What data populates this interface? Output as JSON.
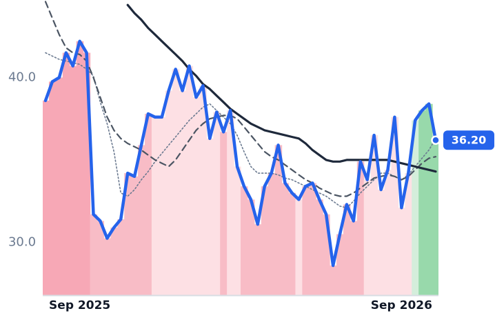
{
  "chart_data": {
    "type": "line",
    "categories": [
      null,
      null,
      null,
      null,
      null,
      "Sep 2025",
      null,
      null,
      null,
      null,
      null,
      null,
      null,
      null,
      null,
      null,
      null,
      null,
      null,
      null,
      null,
      null,
      null,
      null,
      null,
      null,
      null,
      null,
      null,
      null,
      null,
      null,
      null,
      null,
      null,
      null,
      null,
      null,
      null,
      null,
      null,
      null,
      null,
      null,
      null,
      null,
      null,
      null,
      null,
      null,
      null,
      null,
      "Sep 2026",
      null,
      null,
      null,
      null,
      null
    ],
    "ylim": [
      26.8,
      44.7
    ],
    "yticks": [
      {
        "value": 30,
        "label": "30.0"
      },
      {
        "value": 40,
        "label": "40.0"
      }
    ],
    "bar_colors": [
      "#f7a8b6",
      "#f7a8b6",
      "#f7a8b6",
      "#f7a8b6",
      "#f7a8b6",
      "#f7a8b6",
      "#f7a8b6",
      "#f8bcc6",
      "#f8bcc6",
      "#f8bcc6",
      "#f8bcc6",
      "#f8bcc6",
      "#f8bcc6",
      "#f8bcc6",
      "#f8bcc6",
      "#f8bcc6",
      "#fde0e4",
      "#fde0e4",
      "#fde0e4",
      "#fde0e4",
      "#fde0e4",
      "#fde0e4",
      "#fde0e4",
      "#fde0e4",
      "#fde0e4",
      "#fde0e4",
      "#f8bcc6",
      "#fde0e4",
      "#fde0e4",
      "#f8bcc6",
      "#f8bcc6",
      "#f8bcc6",
      "#f8bcc6",
      "#f8bcc6",
      "#f8bcc6",
      "#f8bcc6",
      "#f8bcc6",
      "#fde0e4",
      "#f8bcc6",
      "#f8bcc6",
      "#f8bcc6",
      "#f8bcc6",
      "#f8bcc6",
      "#f8bcc6",
      "#f8bcc6",
      "#f8bcc6",
      "#f8bcc6",
      "#fde0e4",
      "#fde0e4",
      "#fde0e4",
      "#fde0e4",
      "#fde0e4",
      "#fde0e4",
      "#fde0e4",
      "#d4eedb",
      "#98d9ab",
      "#98d9ab",
      "#98d9ab"
    ],
    "series": [
      {
        "color": "#6b7a90",
        "dash": "dotted",
        "width": 1.6,
        "values": [
          41.5,
          41.3,
          41.1,
          41.0,
          40.9,
          40.8,
          40.5,
          40.1,
          38.5,
          37.2,
          35.5,
          33.0,
          32.8,
          33.2,
          33.8,
          34.3,
          34.9,
          35.4,
          35.9,
          36.4,
          36.9,
          37.4,
          37.8,
          38.2,
          38.4,
          38.0,
          37.6,
          37.2,
          36.5,
          35.5,
          34.6,
          34.2,
          34.2,
          34.2,
          34.1,
          33.9,
          33.8,
          33.6,
          33.4,
          33.2,
          33.0,
          32.8,
          32.5,
          32.2,
          32.1,
          32.5,
          33.0,
          33.4,
          33.8,
          34.2,
          34.2,
          34.0,
          33.8,
          34.1,
          34.6,
          35.1,
          35.6,
          36.3
        ]
      },
      {
        "color": "#4b5563",
        "dash": "dashed",
        "width": 2.2,
        "values": [
          44.6,
          43.6,
          42.6,
          41.8,
          41.5,
          41.4,
          41.0,
          40.0,
          38.8,
          37.6,
          36.8,
          36.3,
          36.0,
          35.8,
          35.6,
          35.3,
          35.0,
          34.8,
          34.6,
          35.0,
          35.6,
          36.2,
          36.8,
          37.2,
          37.5,
          37.6,
          37.7,
          37.7,
          37.5,
          37.0,
          36.5,
          36.0,
          35.5,
          35.2,
          35.0,
          34.7,
          34.4,
          34.1,
          33.8,
          33.6,
          33.3,
          33.1,
          32.9,
          32.8,
          32.8,
          33.0,
          33.3,
          33.6,
          33.9,
          34.0,
          34.1,
          34.0,
          33.8,
          34.0,
          34.4,
          34.8,
          35.1,
          35.2
        ]
      },
      {
        "color": "#1e293b",
        "dash": "solid",
        "width": 3.2,
        "values": [
          null,
          null,
          null,
          null,
          null,
          null,
          null,
          null,
          null,
          null,
          null,
          null,
          44.4,
          43.9,
          43.5,
          43.0,
          42.6,
          42.2,
          41.8,
          41.4,
          41.0,
          40.5,
          40.1,
          39.6,
          39.3,
          38.9,
          38.5,
          38.1,
          37.8,
          37.5,
          37.2,
          37.0,
          36.8,
          36.7,
          36.6,
          36.5,
          36.4,
          36.3,
          36.0,
          35.6,
          35.3,
          35.0,
          34.9,
          34.9,
          35.0,
          35.0,
          35.0,
          35.0,
          35.0,
          35.0,
          35.0,
          34.9,
          34.8,
          34.7,
          34.6,
          34.5,
          34.4,
          34.3
        ]
      },
      {
        "color": "#2563eb",
        "dash": "solid",
        "width": 4.5,
        "bars": true,
        "values": [
          38.6,
          39.75,
          40.0,
          41.5,
          40.7,
          42.2,
          41.5,
          31.7,
          31.3,
          30.25,
          30.9,
          31.4,
          34.2,
          34.0,
          35.9,
          37.8,
          37.6,
          37.6,
          39.2,
          40.5,
          39.2,
          40.7,
          38.8,
          39.5,
          36.3,
          37.9,
          36.7,
          38.0,
          34.6,
          33.4,
          32.6,
          31.1,
          33.4,
          34.2,
          35.9,
          33.6,
          33.0,
          32.6,
          33.4,
          33.6,
          32.6,
          31.7,
          28.6,
          30.5,
          32.3,
          31.3,
          34.9,
          33.8,
          36.5,
          33.2,
          34.4,
          37.6,
          32.1,
          34.2,
          37.4,
          38.0,
          38.4,
          36.2
        ],
        "value_labels": [
          null,
          null,
          null,
          null,
          null,
          null,
          null,
          null,
          null,
          null,
          null,
          null,
          null,
          null,
          null,
          null,
          null,
          null,
          null,
          null,
          null,
          null,
          null,
          null,
          null,
          null,
          null,
          null,
          null,
          null,
          null,
          null,
          null,
          null,
          null,
          null,
          null,
          null,
          null,
          null,
          null,
          null,
          null,
          null,
          null,
          null,
          null,
          null,
          null,
          null,
          null,
          null,
          null,
          null,
          null,
          null,
          null,
          "36.20"
        ]
      }
    ]
  }
}
